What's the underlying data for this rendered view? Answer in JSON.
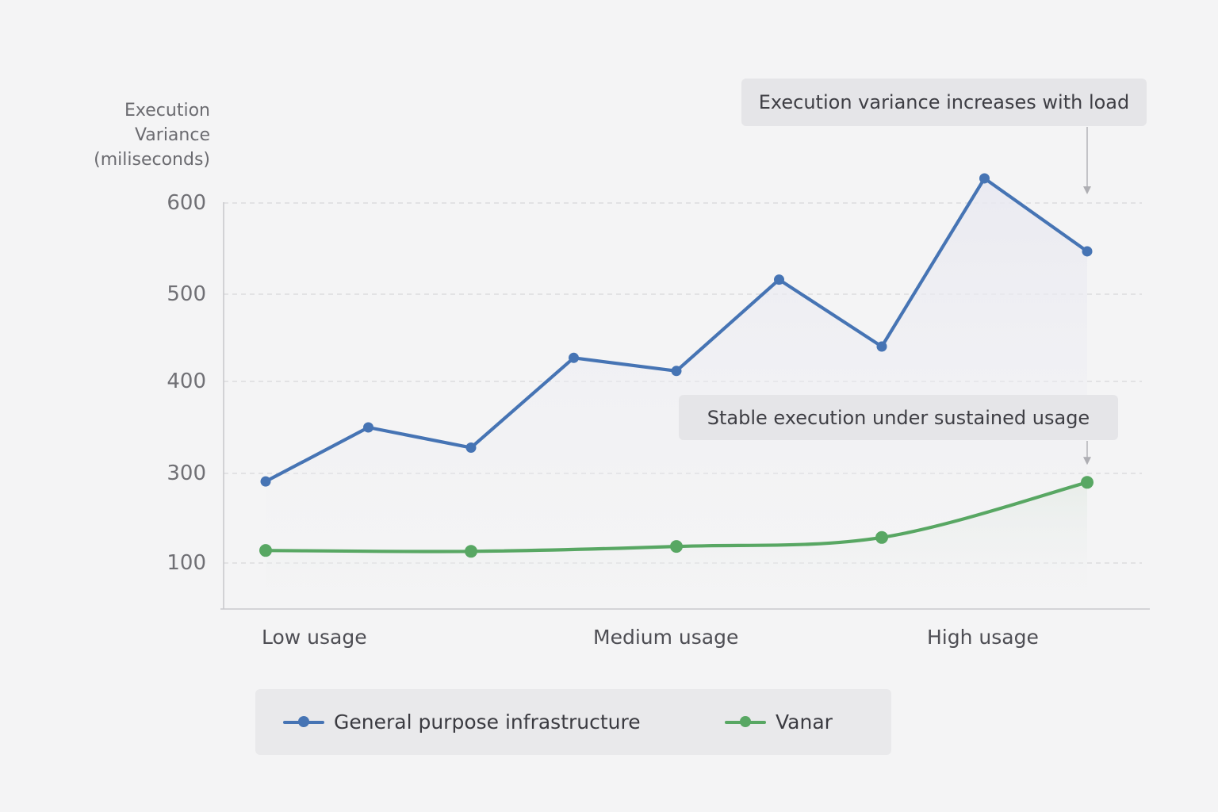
{
  "colors": {
    "series_general": "#4674b4",
    "series_vanar": "#58a763",
    "grid": "#d6d6da",
    "axis": "#c9c9cd"
  },
  "chart_data": {
    "type": "line",
    "ylabel_lines": [
      "Execution",
      "Variance",
      "(miliseconds)"
    ],
    "y_ticks": [
      100,
      300,
      400,
      500,
      600
    ],
    "x_tick_labels": [
      "Low usage",
      "Medium usage",
      "High usage"
    ],
    "grid": true,
    "legend_placement": "bottom",
    "series": [
      {
        "name": "General purpose infrastructure",
        "color_key": "series_general",
        "points": [
          {
            "x": 1,
            "y": 282
          },
          {
            "x": 2,
            "y": 350
          },
          {
            "x": 3,
            "y": 328
          },
          {
            "x": 4,
            "y": 427
          },
          {
            "x": 5,
            "y": 412
          },
          {
            "x": 6,
            "y": 516
          },
          {
            "x": 7,
            "y": 440
          },
          {
            "x": 8,
            "y": 627
          },
          {
            "x": 9,
            "y": 547
          }
        ]
      },
      {
        "name": "Vanar",
        "color_key": "series_vanar",
        "points": [
          {
            "x": 1,
            "y": 128
          },
          {
            "x": 3,
            "y": 126
          },
          {
            "x": 5,
            "y": 137
          },
          {
            "x": 7,
            "y": 157
          },
          {
            "x": 9,
            "y": 280
          }
        ]
      }
    ],
    "annotations": [
      {
        "text": "Execution variance increases with load",
        "target_series": 0,
        "target_x": 9
      },
      {
        "text": "Stable execution under sustained usage",
        "target_series": 1,
        "target_x": 9
      }
    ]
  }
}
